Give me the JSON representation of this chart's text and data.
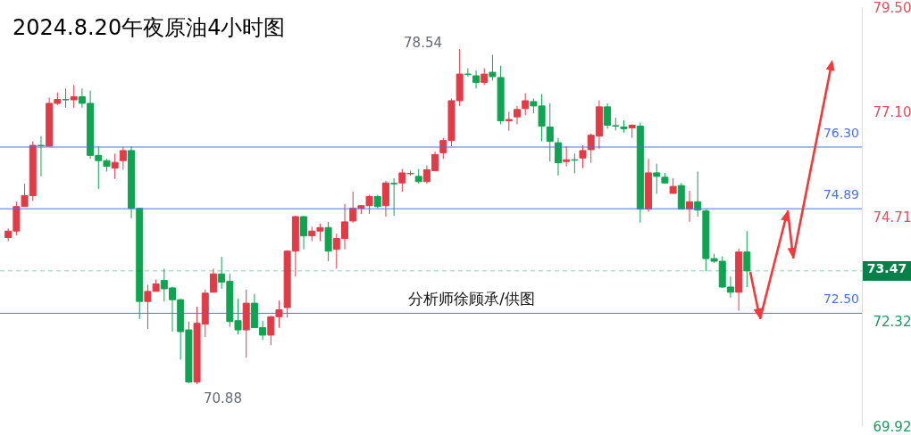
{
  "chart_data": {
    "type": "candlestick",
    "title": "2024.8.20午夜原油4小时图",
    "categories": [
      null,
      null,
      null,
      null,
      null,
      null,
      null,
      null,
      null,
      null,
      null,
      null,
      null,
      null,
      null,
      null,
      null,
      null,
      null,
      null,
      null,
      null,
      null,
      null,
      null,
      null,
      null,
      null,
      null,
      null,
      null,
      null,
      null,
      null,
      null,
      null,
      null,
      null,
      null,
      null,
      null,
      null,
      null,
      null,
      null,
      null,
      null,
      null,
      null,
      null,
      null,
      null,
      null,
      null,
      null,
      null,
      null,
      null,
      null,
      null,
      null,
      null,
      null,
      null,
      null,
      null,
      null,
      null,
      null,
      null,
      null,
      null,
      null,
      null,
      null,
      null,
      null,
      null,
      null,
      null,
      null,
      null,
      null,
      null,
      null,
      null,
      null,
      null,
      null,
      null,
      null,
      null,
      null,
      null,
      null,
      null,
      null,
      null,
      null,
      null,
      null,
      null,
      null,
      null
    ],
    "ohlc": [
      [
        74.23,
        74.44,
        74.15,
        74.38
      ],
      [
        74.38,
        75.05,
        74.28,
        74.94
      ],
      [
        74.94,
        75.46,
        74.94,
        75.19
      ],
      [
        75.19,
        76.43,
        75.07,
        76.34
      ],
      [
        76.34,
        76.55,
        75.63,
        76.33
      ],
      [
        76.32,
        77.43,
        76.32,
        77.3
      ],
      [
        77.3,
        77.55,
        77.26,
        77.39
      ],
      [
        77.39,
        77.64,
        77.2,
        77.38
      ],
      [
        77.38,
        77.72,
        77.2,
        77.45
      ],
      [
        77.45,
        77.64,
        77.2,
        77.3
      ],
      [
        77.3,
        77.59,
        76.03,
        76.11
      ],
      [
        76.11,
        76.32,
        75.34,
        75.99
      ],
      [
        75.99,
        76.03,
        75.74,
        75.86
      ],
      [
        75.82,
        76.15,
        75.57,
        75.95
      ],
      [
        75.99,
        76.3,
        75.78,
        76.22
      ],
      [
        76.22,
        76.32,
        74.67,
        74.9
      ],
      [
        74.9,
        74.91,
        72.37,
        72.77
      ],
      [
        72.77,
        73.15,
        72.14,
        73.0
      ],
      [
        73.0,
        73.27,
        73.0,
        73.17
      ],
      [
        73.25,
        73.52,
        72.77,
        73.06
      ],
      [
        73.08,
        73.11,
        72.08,
        72.81
      ],
      [
        72.81,
        72.83,
        71.44,
        72.08
      ],
      [
        72.12,
        72.31,
        70.9,
        70.93
      ],
      [
        70.93,
        72.65,
        70.88,
        72.27
      ],
      [
        72.25,
        73.04,
        71.96,
        72.96
      ],
      [
        72.98,
        73.52,
        72.98,
        73.4
      ],
      [
        73.4,
        73.79,
        73.06,
        73.21
      ],
      [
        73.23,
        73.4,
        72.19,
        72.31
      ],
      [
        72.33,
        72.83,
        72.02,
        72.12
      ],
      [
        72.12,
        73.04,
        71.48,
        72.73
      ],
      [
        72.73,
        72.94,
        72.17,
        72.17
      ],
      [
        72.17,
        72.33,
        71.89,
        72.0
      ],
      [
        72.0,
        72.44,
        71.77,
        72.42
      ],
      [
        72.42,
        72.79,
        72.17,
        72.58
      ],
      [
        72.63,
        73.94,
        72.4,
        73.92
      ],
      [
        73.92,
        74.73,
        73.34,
        74.71
      ],
      [
        74.71,
        74.73,
        73.96,
        74.27
      ],
      [
        74.27,
        74.48,
        74.15,
        74.38
      ],
      [
        74.38,
        74.55,
        74.15,
        74.46
      ],
      [
        74.46,
        74.59,
        73.69,
        73.92
      ],
      [
        73.96,
        74.32,
        73.52,
        74.21
      ],
      [
        74.21,
        75.0,
        73.96,
        74.59
      ],
      [
        74.61,
        75.28,
        74.57,
        74.9
      ],
      [
        74.9,
        74.96,
        74.77,
        74.96
      ],
      [
        74.96,
        75.21,
        74.77,
        75.17
      ],
      [
        75.17,
        75.21,
        74.9,
        74.94
      ],
      [
        74.96,
        75.53,
        74.71,
        75.48
      ],
      [
        75.47,
        75.59,
        74.73,
        75.46
      ],
      [
        75.48,
        75.8,
        75.28,
        75.71
      ],
      [
        75.69,
        75.76,
        75.65,
        75.7
      ],
      [
        75.63,
        75.8,
        75.46,
        75.51
      ],
      [
        75.51,
        75.88,
        75.46,
        75.78
      ],
      [
        75.76,
        76.2,
        75.76,
        76.13
      ],
      [
        76.17,
        76.51,
        76.03,
        76.45
      ],
      [
        76.45,
        77.41,
        76.32,
        77.36
      ],
      [
        77.36,
        78.54,
        77.24,
        77.97
      ],
      [
        77.97,
        78.1,
        77.91,
        77.96
      ],
      [
        77.93,
        78.05,
        77.64,
        77.78
      ],
      [
        77.78,
        78.1,
        77.72,
        77.97
      ],
      [
        78.01,
        78.41,
        77.82,
        77.91
      ],
      [
        77.89,
        78.16,
        76.82,
        76.9
      ],
      [
        76.9,
        77.11,
        76.67,
        76.93
      ],
      [
        76.99,
        77.24,
        76.82,
        77.16
      ],
      [
        77.18,
        77.53,
        77.03,
        77.36
      ],
      [
        77.34,
        77.41,
        77.07,
        77.24
      ],
      [
        77.24,
        77.51,
        76.43,
        76.78
      ],
      [
        76.76,
        77.3,
        75.97,
        76.43
      ],
      [
        76.4,
        76.51,
        75.65,
        75.94
      ],
      [
        75.97,
        76.32,
        75.86,
        76.01
      ],
      [
        76.01,
        76.15,
        75.7,
        76.0
      ],
      [
        76.05,
        76.34,
        75.82,
        76.22
      ],
      [
        76.24,
        76.61,
        75.94,
        76.57
      ],
      [
        76.55,
        77.37,
        76.26,
        77.22
      ],
      [
        77.22,
        77.3,
        76.72,
        76.8
      ],
      [
        76.79,
        76.97,
        76.68,
        76.78
      ],
      [
        76.76,
        76.91,
        76.63,
        76.72
      ],
      [
        76.74,
        76.82,
        76.51,
        76.8
      ],
      [
        76.78,
        76.86,
        74.57,
        74.88
      ],
      [
        74.88,
        76.03,
        74.82,
        75.71
      ],
      [
        75.71,
        75.92,
        75.23,
        75.63
      ],
      [
        75.61,
        75.71,
        75.46,
        75.48
      ],
      [
        75.24,
        75.59,
        75.24,
        75.4
      ],
      [
        75.42,
        75.48,
        74.88,
        74.88
      ],
      [
        74.88,
        75.3,
        74.59,
        75.05
      ],
      [
        75.05,
        75.74,
        74.71,
        74.86
      ],
      [
        74.84,
        74.88,
        73.46,
        73.75
      ],
      [
        73.75,
        73.86,
        73.65,
        73.69
      ],
      [
        73.69,
        73.8,
        73.08,
        73.1
      ],
      [
        73.1,
        73.34,
        72.86,
        72.98
      ],
      [
        72.98,
        73.98,
        72.56,
        73.9
      ],
      [
        73.9,
        74.38,
        73.1,
        73.47
      ],
      null,
      null,
      null,
      null,
      null,
      null,
      null,
      null,
      null,
      null,
      null,
      null,
      null
    ],
    "colors": [
      "#e23b48",
      "#e23b48",
      "#e23b48",
      "#e23b48",
      "#0ea452",
      "#e23b48",
      "#e23b48",
      "#0ea452",
      "#e23b48",
      "#0ea452",
      "#0ea452",
      "#0ea452",
      "#0ea452",
      "#e23b48",
      "#e23b48",
      "#0ea452",
      "#0ea452",
      "#e23b48",
      "#e23b48",
      "#0ea452",
      "#0ea452",
      "#0ea452",
      "#0ea452",
      "#e23b48",
      "#e23b48",
      "#e23b48",
      "#0ea452",
      "#0ea452",
      "#0ea452",
      "#e23b48",
      "#0ea452",
      "#0ea452",
      "#e23b48",
      "#e23b48",
      "#e23b48",
      "#e23b48",
      "#0ea452",
      "#e23b48",
      "#e23b48",
      "#0ea452",
      "#e23b48",
      "#e23b48",
      "#e23b48",
      "#e23b48",
      "#e23b48",
      "#0ea452",
      "#e23b48",
      "#0ea452",
      "#e23b48",
      "#e23b48",
      "#0ea452",
      "#e23b48",
      "#e23b48",
      "#e23b48",
      "#e23b48",
      "#e23b48",
      "#0ea452",
      "#0ea452",
      "#e23b48",
      "#0ea452",
      "#0ea452",
      "#e23b48",
      "#e23b48",
      "#e23b48",
      "#0ea452",
      "#0ea452",
      "#0ea452",
      "#0ea452",
      "#e23b48",
      "#0ea452",
      "#e23b48",
      "#e23b48",
      "#e23b48",
      "#0ea452",
      "#0ea452",
      "#0ea452",
      "#e23b48",
      "#0ea452",
      "#e23b48",
      "#0ea452",
      "#0ea452",
      "#e23b48",
      "#0ea452",
      "#e23b48",
      "#0ea452",
      "#0ea452",
      "#0ea452",
      "#0ea452",
      "#0ea452",
      "#e23b48",
      "#0ea452",
      null,
      null,
      null,
      null,
      null,
      null,
      null,
      null,
      null,
      null,
      null,
      null,
      null
    ],
    "ylim": [
      69.92,
      79.5
    ],
    "yticks": [
      69.92,
      72.32,
      74.71,
      {
        "value": 77.1,
        "label": "77.10"
      },
      {
        "value": 79.5,
        "label": "79.50"
      }
    ],
    "tick_labels": "y",
    "ref_lines": [
      {
        "axis": "y",
        "value": 76.3,
        "label": "76.30",
        "color": "#4a72e8",
        "line_style": "solid"
      },
      {
        "axis": "y",
        "value": 74.89,
        "label": "74.89",
        "color": "#4a72e8",
        "line_style": "solid"
      },
      {
        "axis": "y",
        "value": 72.5,
        "label": "72.50",
        "color": "#4a72e8",
        "line_style": "solid"
      },
      {
        "axis": "y",
        "value": 73.47,
        "label": "73.47",
        "color": "#08804a",
        "line_style": "dashed"
      }
    ],
    "annotations": [
      "78.54",
      "70.88",
      "分析师徐顾承/供图"
    ]
  }
}
